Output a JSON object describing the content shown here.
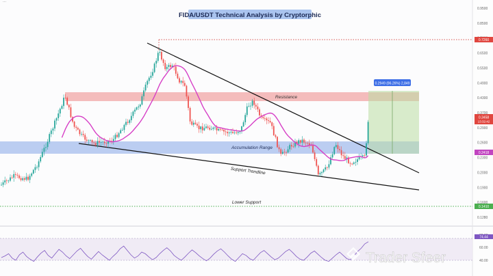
{
  "chart_data": {
    "type": "candlestick",
    "title": "FIDA/USDT Technical Analysis by Cryptorphic",
    "header_text": "...",
    "y_ticks": [
      "0.9500",
      "0.8500",
      "0.7600",
      "0.6500",
      "0.5500",
      "0.4900",
      "0.4300",
      "0.3700",
      "0.2900",
      "0.2600",
      "0.2300",
      "0.2000",
      "0.1900",
      "0.1600",
      "0.1280"
    ],
    "price_badges": {
      "top": "0.7260",
      "current": "0.3458",
      "current_sub": "13:32:42",
      "ma": "0.2418",
      "bottom": "0.1410"
    },
    "annotations": {
      "resistance": "Resistance",
      "accumulation": "Accumulation Range",
      "support_trendline": "Support Trendline",
      "lower_support": "Lower Support",
      "target_label": "0.2949 (86.26%) 2,849"
    },
    "rsi": {
      "ticks": [
        "80.00",
        "60.00",
        "40.00"
      ],
      "badge": "74.44",
      "values": [
        45,
        48,
        52,
        44,
        40,
        50,
        55,
        47,
        42,
        38,
        46,
        53,
        58,
        49,
        44,
        52,
        60,
        55,
        48,
        43,
        50,
        57,
        62,
        54,
        47,
        42,
        49,
        56,
        50,
        45,
        40,
        47,
        53,
        61,
        66,
        58,
        50,
        44,
        48,
        55,
        52,
        46,
        41,
        45,
        52,
        58,
        63,
        57,
        49,
        44,
        40,
        46,
        53,
        59,
        54,
        48,
        43,
        39,
        44,
        51,
        57,
        61,
        55,
        48,
        42,
        38,
        45,
        52,
        49,
        43,
        40,
        47,
        54,
        58,
        52,
        46,
        41,
        44,
        50,
        56,
        60,
        54,
        47,
        42,
        40,
        46,
        53,
        57,
        51,
        45,
        40,
        38,
        44,
        50,
        55,
        49,
        43,
        41,
        48,
        56,
        62,
        70,
        74
      ]
    },
    "watermark": "Trader Sfeer"
  }
}
